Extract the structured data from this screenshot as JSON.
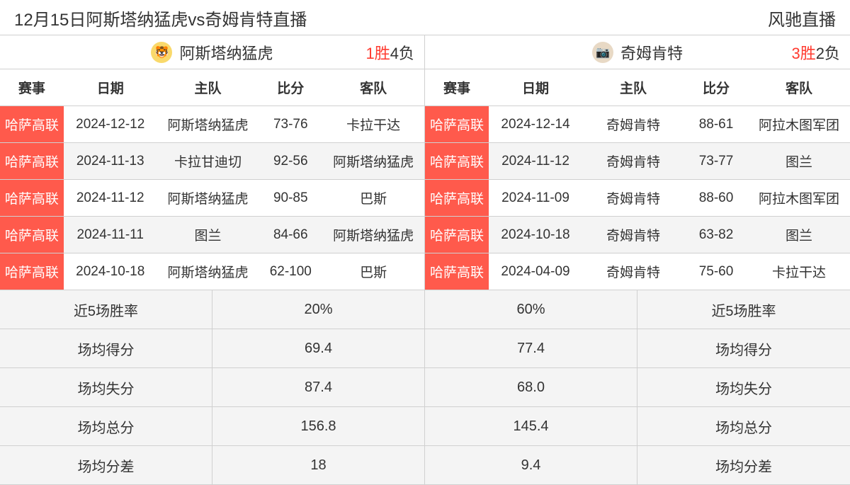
{
  "title": "12月15日阿斯塔纳猛虎vs奇姆肯特直播",
  "brand": "风驰直播",
  "colors": {
    "league_bg": "#ff5a4c",
    "league_text": "#ffffff",
    "win_color": "#ff3b30",
    "border": "#d0d0d0",
    "alt_row": "#f4f4f4"
  },
  "headers": {
    "league": "赛事",
    "date": "日期",
    "home": "主队",
    "score": "比分",
    "away": "客队"
  },
  "left": {
    "team": "阿斯塔纳猛虎",
    "logo_emoji": "🐯",
    "logo_bg": "#f9d96b",
    "record_win": "1胜",
    "record_lose": "4负",
    "rows": [
      {
        "league": "哈萨高联",
        "date": "2024-12-12",
        "home": "阿斯塔纳猛虎",
        "score": "73-76",
        "away": "卡拉干达"
      },
      {
        "league": "哈萨高联",
        "date": "2024-11-13",
        "home": "卡拉甘迪切",
        "score": "92-56",
        "away": "阿斯塔纳猛虎"
      },
      {
        "league": "哈萨高联",
        "date": "2024-11-12",
        "home": "阿斯塔纳猛虎",
        "score": "90-85",
        "away": "巴斯"
      },
      {
        "league": "哈萨高联",
        "date": "2024-11-11",
        "home": "图兰",
        "score": "84-66",
        "away": "阿斯塔纳猛虎"
      },
      {
        "league": "哈萨高联",
        "date": "2024-10-18",
        "home": "阿斯塔纳猛虎",
        "score": "62-100",
        "away": "巴斯"
      }
    ]
  },
  "right": {
    "team": "奇姆肯特",
    "logo_emoji": "📷",
    "logo_bg": "#e8d9c5",
    "record_win": "3胜",
    "record_lose": "2负",
    "rows": [
      {
        "league": "哈萨高联",
        "date": "2024-12-14",
        "home": "奇姆肯特",
        "score": "88-61",
        "away": "阿拉木图军团"
      },
      {
        "league": "哈萨高联",
        "date": "2024-11-12",
        "home": "奇姆肯特",
        "score": "73-77",
        "away": "图兰"
      },
      {
        "league": "哈萨高联",
        "date": "2024-11-09",
        "home": "奇姆肯特",
        "score": "88-60",
        "away": "阿拉木图军团"
      },
      {
        "league": "哈萨高联",
        "date": "2024-10-18",
        "home": "奇姆肯特",
        "score": "63-82",
        "away": "图兰"
      },
      {
        "league": "哈萨高联",
        "date": "2024-04-09",
        "home": "奇姆肯特",
        "score": "75-60",
        "away": "卡拉干达"
      }
    ]
  },
  "stats": [
    {
      "label_l": "近5场胜率",
      "val_l": "20%",
      "val_r": "60%",
      "label_r": "近5场胜率"
    },
    {
      "label_l": "场均得分",
      "val_l": "69.4",
      "val_r": "77.4",
      "label_r": "场均得分"
    },
    {
      "label_l": "场均失分",
      "val_l": "87.4",
      "val_r": "68.0",
      "label_r": "场均失分"
    },
    {
      "label_l": "场均总分",
      "val_l": "156.8",
      "val_r": "145.4",
      "label_r": "场均总分"
    },
    {
      "label_l": "场均分差",
      "val_l": "18",
      "val_r": "9.4",
      "label_r": "场均分差"
    }
  ]
}
